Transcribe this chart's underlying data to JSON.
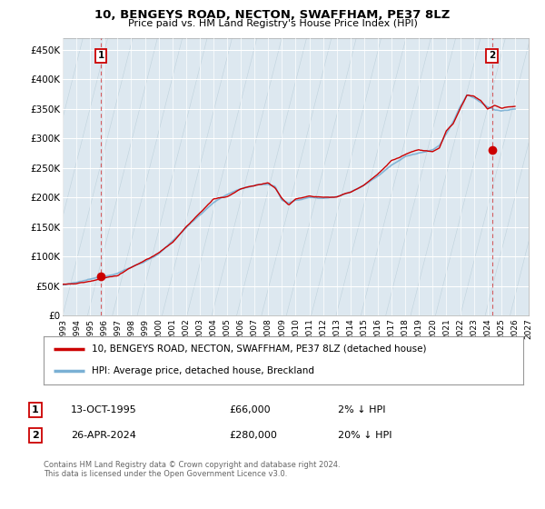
{
  "title": "10, BENGEYS ROAD, NECTON, SWAFFHAM, PE37 8LZ",
  "subtitle": "Price paid vs. HM Land Registry's House Price Index (HPI)",
  "ylim": [
    0,
    470000
  ],
  "yticks": [
    0,
    50000,
    100000,
    150000,
    200000,
    250000,
    300000,
    350000,
    400000,
    450000
  ],
  "ytick_labels": [
    "£0",
    "£50K",
    "£100K",
    "£150K",
    "£200K",
    "£250K",
    "£300K",
    "£350K",
    "£400K",
    "£450K"
  ],
  "xlim": [
    1993,
    2027
  ],
  "xtick_years": [
    1993,
    1994,
    1995,
    1996,
    1997,
    1998,
    1999,
    2000,
    2001,
    2002,
    2003,
    2004,
    2005,
    2006,
    2007,
    2008,
    2009,
    2010,
    2011,
    2012,
    2013,
    2014,
    2015,
    2016,
    2017,
    2018,
    2019,
    2020,
    2021,
    2022,
    2023,
    2024,
    2025,
    2026,
    2027
  ],
  "sale1_date": 1995.79,
  "sale1_price": 66000,
  "sale2_date": 2024.32,
  "sale2_price": 280000,
  "price_color": "#cc0000",
  "hpi_color": "#7ab0d4",
  "annotation_box_color": "#cc0000",
  "legend_label_price": "10, BENGEYS ROAD, NECTON, SWAFFHAM, PE37 8LZ (detached house)",
  "legend_label_hpi": "HPI: Average price, detached house, Breckland",
  "note1_num": "1",
  "note1_date": "13-OCT-1995",
  "note1_price": "£66,000",
  "note1_hpi": "2% ↓ HPI",
  "note2_num": "2",
  "note2_date": "26-APR-2024",
  "note2_price": "£280,000",
  "note2_hpi": "20% ↓ HPI",
  "footer": "Contains HM Land Registry data © Crown copyright and database right 2024.\nThis data is licensed under the Open Government Licence v3.0.",
  "background_color": "#ffffff",
  "plot_bg_color": "#dde8f0"
}
